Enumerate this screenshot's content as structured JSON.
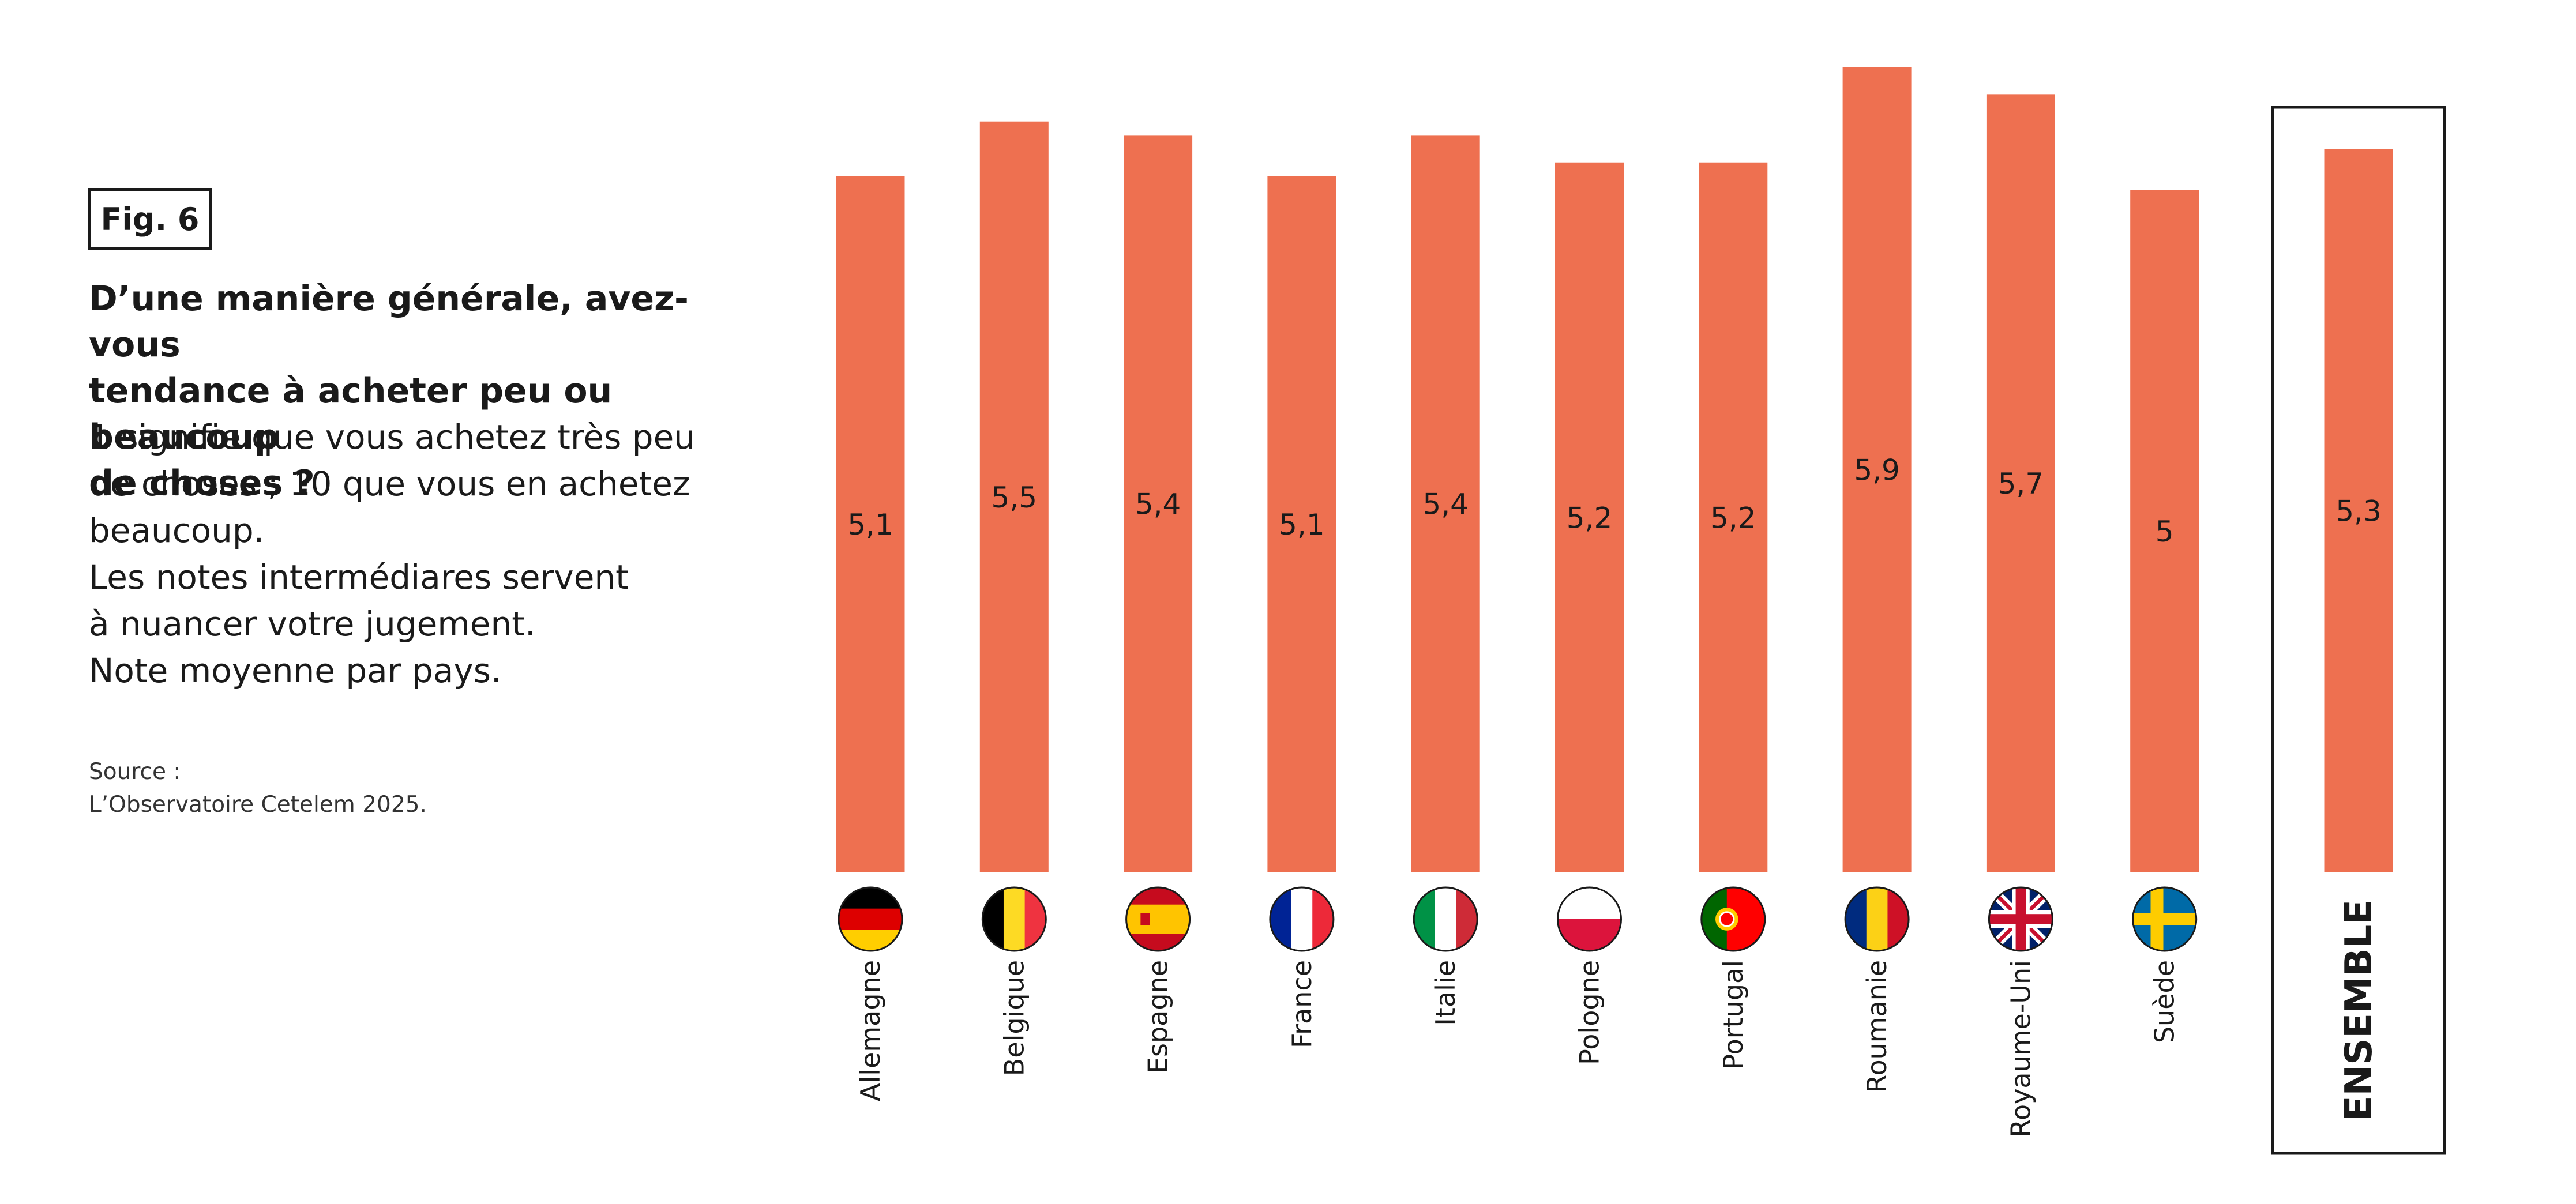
{
  "figure": {
    "badge": "Fig. 6",
    "question_lines": [
      "D’une manière générale, avez-vous",
      "tendance à acheter peu ou beaucoup",
      "de choses ?"
    ],
    "description_lines": [
      "1 signifie que vous achetez très peu",
      "de choses ; 10 que vous en achetez",
      "beaucoup.",
      "Les notes intermédiares servent",
      "à nuancer votre jugement.",
      "Note moyenne par pays."
    ],
    "source_lines": [
      "Source :",
      "L’Observatoire Cetelem 2025."
    ]
  },
  "colors": {
    "bar": "#ee7050",
    "text": "#1a1a1a",
    "frame": "#1a1a1a"
  },
  "chart_data": {
    "type": "bar",
    "categories": [
      "Allemagne",
      "Belgique",
      "Espagne",
      "France",
      "Italie",
      "Pologne",
      "Portugal",
      "Roumanie",
      "Royaume-Uni",
      "Suède",
      "ENSEMBLE"
    ],
    "values": [
      5.1,
      5.5,
      5.4,
      5.1,
      5.4,
      5.2,
      5.2,
      5.9,
      5.7,
      5.0,
      5.3
    ],
    "value_labels": [
      "5,1",
      "5,5",
      "5,4",
      "5,1",
      "5,4",
      "5,2",
      "5,2",
      "5,9",
      "5,7",
      "5",
      "5,3"
    ],
    "flags": [
      "flag-germany",
      "flag-belgium",
      "flag-spain",
      "flag-france",
      "flag-italy",
      "flag-poland",
      "flag-portugal",
      "flag-romania",
      "flag-united-kingdom",
      "flag-sweden",
      null
    ],
    "highlighted_category": "ENSEMBLE",
    "ylim": [
      0,
      5.9
    ],
    "grid": false,
    "legend": "none"
  }
}
